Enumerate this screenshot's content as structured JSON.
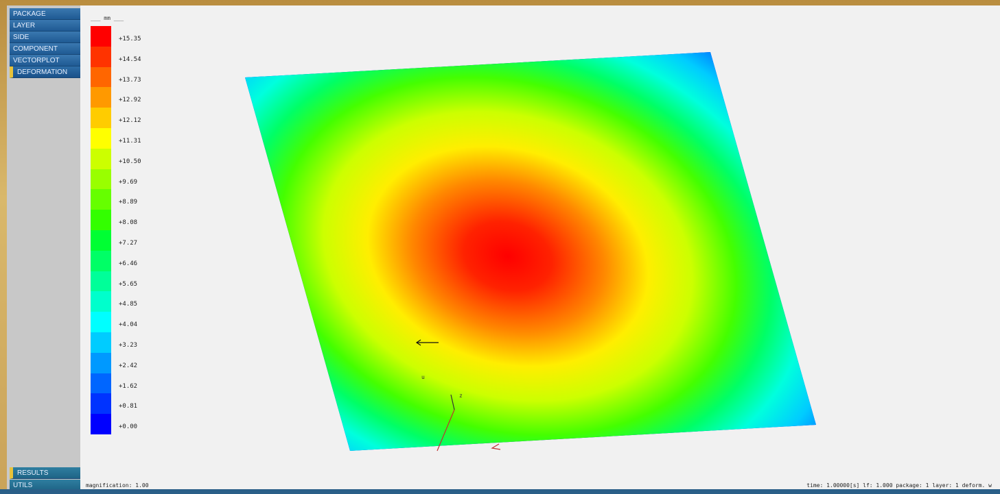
{
  "menu": {
    "top_items": [
      {
        "label": "PACKAGE",
        "active": false
      },
      {
        "label": "LAYER",
        "active": false
      },
      {
        "label": "SIDE",
        "active": false
      },
      {
        "label": "COMPONENT",
        "active": false
      },
      {
        "label": "VECTORPLOT",
        "active": false
      },
      {
        "label": "DEFORMATION",
        "active": true
      }
    ],
    "bottom_items": [
      {
        "label": "RESULTS",
        "active": true
      },
      {
        "label": "UTILS",
        "active": false
      }
    ]
  },
  "legend": {
    "unit": "___ mm ___",
    "values": [
      "+15.35",
      "+14.54",
      "+13.73",
      "+12.92",
      "+12.12",
      "+11.31",
      "+10.50",
      "+9.69",
      "+8.89",
      "+8.08",
      "+7.27",
      "+6.46",
      "+5.65",
      "+4.85",
      "+4.04",
      "+3.23",
      "+2.42",
      "+1.62",
      "+0.81",
      "+0.00"
    ],
    "colors": [
      "#ff0000",
      "#ff3300",
      "#ff6600",
      "#ff9900",
      "#ffcc00",
      "#ffff00",
      "#ccff00",
      "#99ff00",
      "#66ff00",
      "#33ff00",
      "#00ff33",
      "#00ff66",
      "#00ff99",
      "#00ffcc",
      "#00ffff",
      "#00ccff",
      "#0099ff",
      "#0066ff",
      "#0033ff",
      "#0000ff"
    ]
  },
  "plot": {
    "field": "deformation",
    "max_color": "#ff0000",
    "min_color": "#0000ff"
  },
  "status": {
    "magnification": "magnification:  1.00",
    "info": "time:  1.00000[s] lf:  1.000 package: 1 layer: 1 deform. w"
  }
}
